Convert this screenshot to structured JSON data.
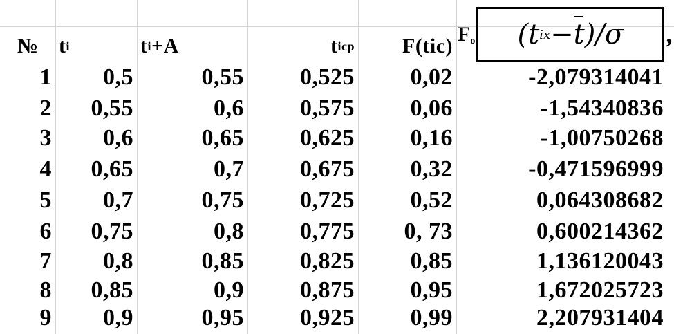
{
  "table": {
    "headers": {
      "no": "№",
      "ti_base": "t",
      "ti_sub": "i",
      "tiA_base": "t",
      "tiA_sub": "i",
      "tiA_rest": "+A",
      "ticp_base": "t",
      "ticp_sub": "icp",
      "Ftic": "F(tic)",
      "F_base": "F",
      "F_sub": "o",
      "formula_open": "(t",
      "formula_sub": "ix",
      "formula_minus": " − ",
      "formula_tbar": "t",
      "formula_close": ")/σ",
      "formula_comma": ","
    },
    "rows": [
      {
        "n": "1",
        "ti": "0,5",
        "tiA": "0,55",
        "ticp": "0,525",
        "Ftic": "0,02",
        "Fo": "-2,079314041"
      },
      {
        "n": "2",
        "ti": "0,55",
        "tiA": "0,6",
        "ticp": "0,575",
        "Ftic": "0,06",
        "Fo": "-1,54340836"
      },
      {
        "n": "3",
        "ti": "0,6",
        "tiA": "0,65",
        "ticp": "0,625",
        "Ftic": "0,16",
        "Fo": "-1,00750268"
      },
      {
        "n": "4",
        "ti": "0,65",
        "tiA": "0,7",
        "ticp": "0,675",
        "Ftic": "0,32",
        "Fo": "-0,471596999"
      },
      {
        "n": "5",
        "ti": "0,7",
        "tiA": "0,75",
        "ticp": "0,725",
        "Ftic": "0,52",
        "Fo": "0,064308682"
      },
      {
        "n": "6",
        "ti": "0,75",
        "tiA": "0,8",
        "ticp": "0,775",
        "Ftic": "0, 73",
        "Fo": "0,600214362"
      },
      {
        "n": "7",
        "ti": "0,8",
        "tiA": "0,85",
        "ticp": "0,825",
        "Ftic": "0,85",
        "Fo": "1,136120043"
      },
      {
        "n": "8",
        "ti": "0,85",
        "tiA": "0,9",
        "ticp": "0,875",
        "Ftic": "0,95",
        "Fo": "1,672025723"
      },
      {
        "n": "9",
        "ti": "0,9",
        "tiA": "0,95",
        "ticp": "0,925",
        "Ftic": "0,99",
        "Fo": "2,207931404"
      }
    ]
  }
}
